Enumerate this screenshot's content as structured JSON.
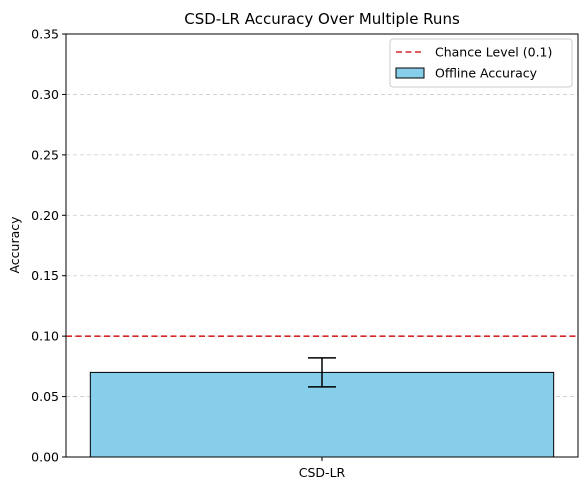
{
  "chart_data": {
    "type": "bar",
    "title": "CSD-LR Accuracy Over Multiple Runs",
    "xlabel": "",
    "ylabel": "Accuracy",
    "categories": [
      "CSD-LR"
    ],
    "series": [
      {
        "name": "Offline Accuracy",
        "values": [
          0.07
        ],
        "error": [
          0.012
        ],
        "color": "#87ceeb",
        "edgecolor": "#000000"
      }
    ],
    "reference_lines": [
      {
        "name": "Chance Level (0.1)",
        "y": 0.1,
        "color": "#d62728",
        "style": "dashed"
      }
    ],
    "ylim": [
      0,
      0.35
    ],
    "yticks": [
      "0.00",
      "0.05",
      "0.10",
      "0.15",
      "0.20",
      "0.25",
      "0.30",
      "0.35"
    ],
    "grid": "y-dashed",
    "legend_position": "top-right"
  }
}
